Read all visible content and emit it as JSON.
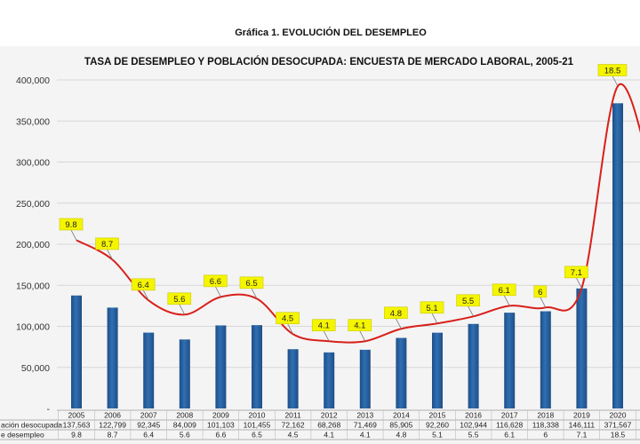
{
  "figure_title": "Gráfica 1. EVOLUCIÓN DEL DESEMPLEO",
  "colors": {
    "bar": "#2f6fb3",
    "bar_dark": "#1f4e85",
    "line": "#d9201a",
    "label_bg": "#f5f500",
    "panel": "#f4f4f4"
  },
  "chart_data": {
    "type": "bar",
    "title": "TASA DE DESEMPLEO Y POBLACIÓN DESOCUPADA:  ENCUESTA DE MERCADO LABORAL, 2005-21",
    "categories": [
      "2005",
      "2006",
      "2007",
      "2008",
      "2009",
      "2010",
      "2011",
      "2012",
      "2013",
      "2014",
      "2015",
      "2016",
      "2017",
      "2018",
      "2019",
      "2020"
    ],
    "ylim": [
      0,
      400000
    ],
    "y_ticks": [
      "-",
      "50,000",
      "100,000",
      "150,000",
      "200,000",
      "250,000",
      "300,000",
      "350,000",
      "400,000"
    ],
    "grid": true,
    "series": [
      {
        "name": "ación desocupada",
        "type": "bar",
        "values": [
          137563,
          122799,
          92345,
          84009,
          101103,
          101455,
          72162,
          68268,
          71469,
          85905,
          92260,
          102944,
          116628,
          118338,
          146111,
          371567
        ],
        "table_text": [
          "137,563",
          "122,799",
          "92,345",
          "84,009",
          "101,103",
          "101,455",
          "72,162",
          "68,268",
          "71,469",
          "85,905",
          "92,260",
          "102,944",
          "116,628",
          "118,338",
          "146,111",
          "371,567"
        ]
      },
      {
        "name": "e desempleo",
        "type": "line",
        "values": [
          9.8,
          8.7,
          6.4,
          5.6,
          6.6,
          6.5,
          4.5,
          4.1,
          4.1,
          4.8,
          5.1,
          5.5,
          6.1,
          6,
          7.1,
          18.5
        ],
        "labels": [
          "9.8",
          "8.7",
          "6.4",
          "5.6",
          "6.6",
          "6.5",
          "4.5",
          "4.1",
          "4.1",
          "4.8",
          "5.1",
          "5.5",
          "6.1",
          "6",
          "7.1",
          "18.5"
        ]
      }
    ]
  }
}
